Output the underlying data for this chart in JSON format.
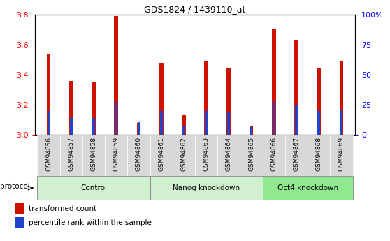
{
  "title": "GDS1824 / 1439110_at",
  "samples": [
    "GSM94856",
    "GSM94857",
    "GSM94858",
    "GSM94859",
    "GSM94860",
    "GSM94861",
    "GSM94862",
    "GSM94863",
    "GSM94864",
    "GSM94865",
    "GSM94866",
    "GSM94867",
    "GSM94868",
    "GSM94869"
  ],
  "red_values": [
    3.54,
    3.36,
    3.35,
    3.79,
    3.08,
    3.48,
    3.13,
    3.49,
    3.44,
    3.06,
    3.7,
    3.63,
    3.44,
    3.49
  ],
  "blue_values": [
    3.16,
    3.11,
    3.11,
    3.22,
    3.09,
    3.16,
    3.06,
    3.16,
    3.15,
    3.05,
    3.22,
    3.2,
    3.16,
    3.17
  ],
  "group_bounds": [
    [
      0,
      5,
      "Control"
    ],
    [
      5,
      10,
      "Nanog knockdown"
    ],
    [
      10,
      14,
      "Oct4 knockdown"
    ]
  ],
  "group_colors": [
    "#d0f0d0",
    "#d0f0d0",
    "#90e890"
  ],
  "tick_bg_color": "#d8d8d8",
  "ymin": 3.0,
  "ymax": 3.8,
  "y2min": 0,
  "y2max": 100,
  "yticks": [
    3.0,
    3.2,
    3.4,
    3.6,
    3.8
  ],
  "y2ticks": [
    0,
    25,
    50,
    75,
    100
  ],
  "bar_color": "#cc1100",
  "blue_color": "#2244cc",
  "protocol_label": "protocol",
  "legend_red": "transformed count",
  "legend_blue": "percentile rank within the sample"
}
